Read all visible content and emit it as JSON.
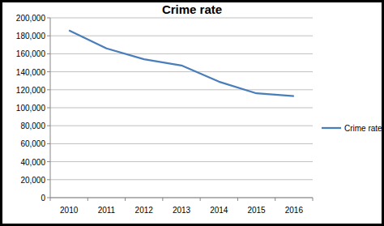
{
  "chart_data": {
    "type": "line",
    "title": "Crime rate",
    "categories": [
      "2010",
      "2011",
      "2012",
      "2013",
      "2014",
      "2015",
      "2016"
    ],
    "series": [
      {
        "name": "Crime rate",
        "color": "#4a7ebb",
        "values": [
          186000,
          166000,
          154000,
          147000,
          129000,
          116000,
          113000
        ]
      }
    ],
    "ylim": [
      0,
      200000
    ],
    "yticks": [
      0,
      {
        "value": 20000,
        "label": "20,000"
      },
      {
        "value": 40000,
        "label": "40,000"
      },
      {
        "value": 60000,
        "label": "60,000"
      },
      {
        "value": 80000,
        "label": "80,000"
      },
      {
        "value": 100000,
        "label": "100,000"
      },
      {
        "value": 120000,
        "label": "120,000"
      },
      {
        "value": 140000,
        "label": "140,000"
      },
      {
        "value": 160000,
        "label": "160,000"
      },
      {
        "value": 180000,
        "label": "180,000"
      },
      {
        "value": 200000,
        "label": "200,000"
      }
    ],
    "grid": true,
    "legend": "right"
  }
}
